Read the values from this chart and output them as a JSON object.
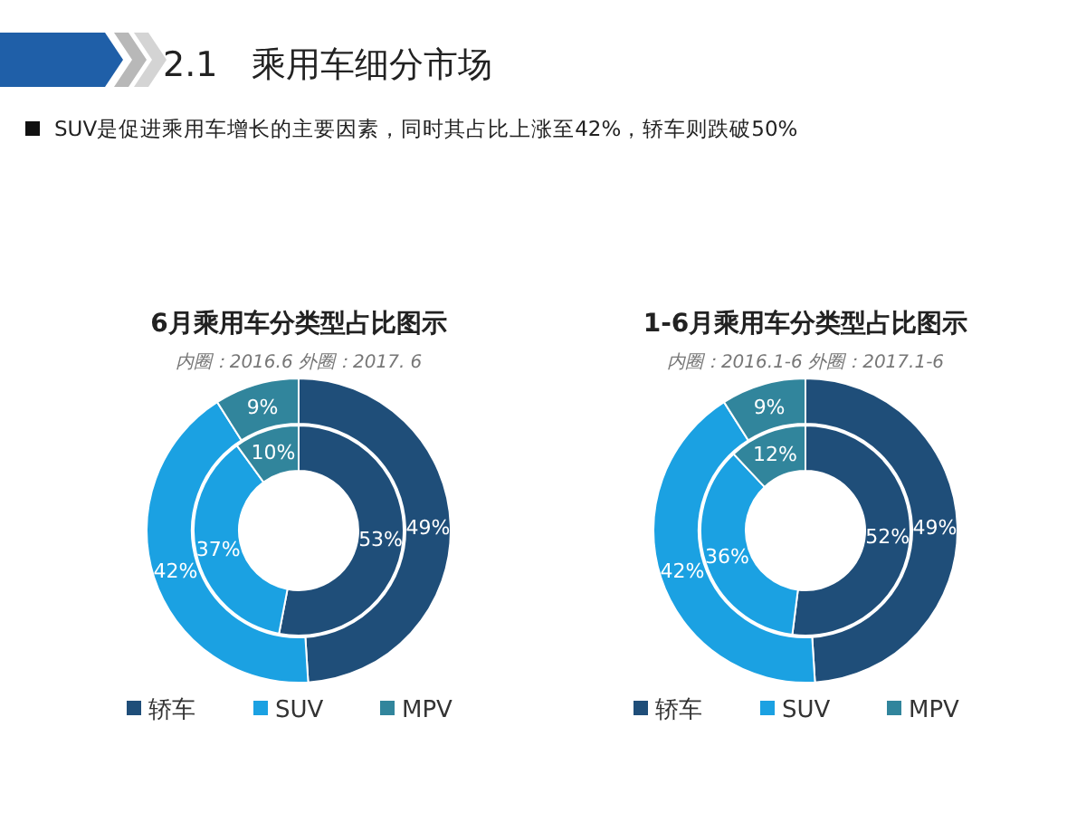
{
  "chart_data": [
    {
      "type": "donut",
      "title": "6月乘用车分类型占比图示",
      "subtitle": "内圈：2016.6 外圈：2017. 6",
      "annotations": [
        "2.1　乘用车细分市场",
        "SUV是促进乘用车增长的主要因素，同时其占比上涨至42%，轿车则跌破50%"
      ],
      "categories": [
        "轿车",
        "SUV",
        "MPV"
      ],
      "colors": [
        "#1f4e79",
        "#1ba1e2",
        "#31859c"
      ],
      "legend": "bottom",
      "series": [
        {
          "values": [
            53,
            37,
            10
          ],
          "value_labels": [
            "53%",
            "37%",
            "10%"
          ]
        },
        {
          "values": [
            49,
            42,
            9
          ],
          "value_labels": [
            "49%",
            "42%",
            "9%"
          ]
        }
      ]
    },
    {
      "type": "donut",
      "title": "1-6月乘用车分类型占比图示",
      "subtitle": "内圈：2016.1-6 外圈：2017.1-6",
      "categories": [
        "轿车",
        "SUV",
        "MPV"
      ],
      "colors": [
        "#1f4e79",
        "#1ba1e2",
        "#31859c"
      ],
      "legend": "bottom",
      "series": [
        {
          "values": [
            52,
            36,
            12
          ],
          "value_labels": [
            "52%",
            "36%",
            "12%"
          ]
        },
        {
          "values": [
            49,
            42,
            9
          ],
          "value_labels": [
            "49%",
            "42%",
            "9%"
          ]
        }
      ]
    }
  ]
}
